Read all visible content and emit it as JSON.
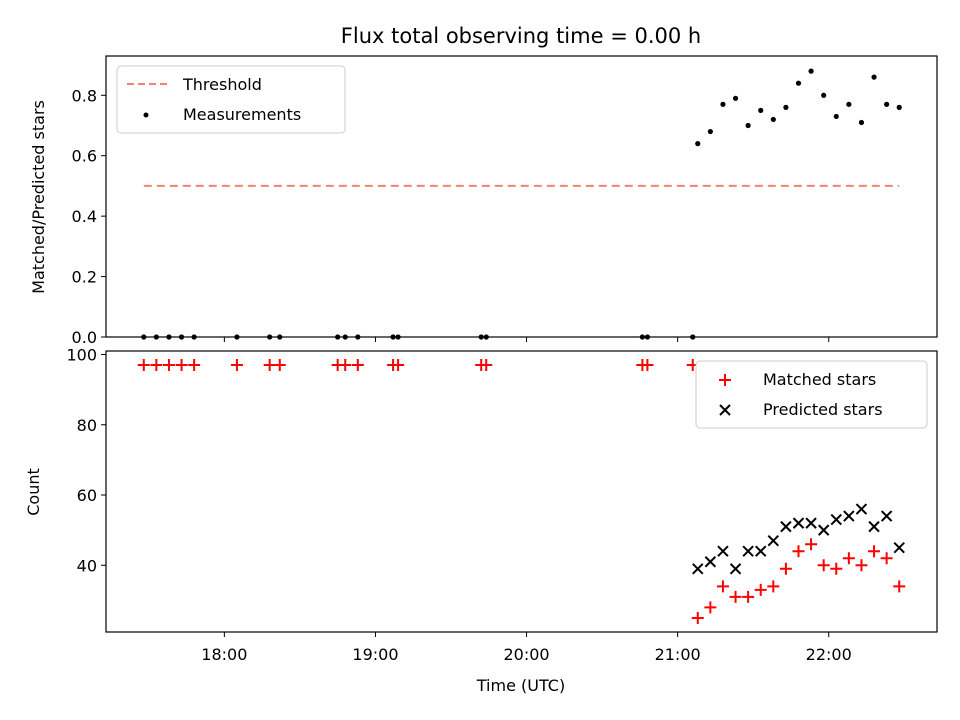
{
  "chart_data": [
    {
      "type": "scatter",
      "title": "Flux total observing time = 0.00 h",
      "ylabel": "Matched/Predicted stars",
      "xlabel": "",
      "ylim": [
        0.0,
        0.93
      ],
      "yticks": [
        0.0,
        0.2,
        0.4,
        0.6,
        0.8
      ],
      "ytick_labels": [
        "0.0",
        "0.2",
        "0.4",
        "0.6",
        "0.8"
      ],
      "legend": {
        "location": "upper-left",
        "entries": [
          "Threshold",
          "Measurements"
        ]
      },
      "threshold": {
        "name": "Threshold",
        "value": 0.5,
        "x_start": "17:28",
        "x_end": "22:28",
        "color": "#fa8072"
      },
      "series": [
        {
          "name": "Measurements",
          "marker": "dot",
          "color": "#000000",
          "x": [
            "17:28",
            "17:33",
            "17:38",
            "17:43",
            "17:48",
            "18:05",
            "18:18",
            "18:22",
            "18:45",
            "18:48",
            "18:53",
            "19:07",
            "19:09",
            "19:42",
            "19:44",
            "20:46",
            "20:48",
            "21:06",
            "21:08",
            "21:13",
            "21:18",
            "21:23",
            "21:28",
            "21:33",
            "21:38",
            "21:43",
            "21:48",
            "21:53",
            "21:58",
            "22:03",
            "22:08",
            "22:13",
            "22:18",
            "22:23",
            "22:28"
          ],
          "y": [
            0,
            0,
            0,
            0,
            0,
            0,
            0,
            0,
            0,
            0,
            0,
            0,
            0,
            0,
            0,
            0,
            0,
            0,
            0.64,
            0.68,
            0.77,
            0.79,
            0.7,
            0.75,
            0.72,
            0.76,
            0.84,
            0.88,
            0.8,
            0.73,
            0.77,
            0.71,
            0.86,
            0.77,
            0.76
          ]
        }
      ]
    },
    {
      "type": "scatter",
      "title": "",
      "ylabel": "Count",
      "xlabel": "Time (UTC)",
      "ylim": [
        21,
        101
      ],
      "yticks": [
        40,
        60,
        80,
        100
      ],
      "ytick_labels": [
        "40",
        "60",
        "80",
        "100"
      ],
      "xlim": [
        "17:13",
        "22:43"
      ],
      "xticks": [
        "18:00",
        "19:00",
        "20:00",
        "21:00",
        "22:00"
      ],
      "xtick_labels": [
        "18:00",
        "19:00",
        "20:00",
        "21:00",
        "22:00"
      ],
      "legend": {
        "location": "upper-right",
        "entries": [
          "Matched stars",
          "Predicted stars"
        ]
      },
      "series": [
        {
          "name": "Matched stars",
          "marker": "plus",
          "color": "#ff0000",
          "x": [
            "17:28",
            "17:33",
            "17:38",
            "17:43",
            "17:48",
            "18:05",
            "18:18",
            "18:22",
            "18:45",
            "18:48",
            "18:53",
            "19:07",
            "19:09",
            "19:42",
            "19:44",
            "20:46",
            "20:48",
            "21:06",
            "21:08",
            "21:13",
            "21:18",
            "21:23",
            "21:28",
            "21:33",
            "21:38",
            "21:43",
            "21:48",
            "21:53",
            "21:58",
            "22:03",
            "22:08",
            "22:13",
            "22:18",
            "22:23",
            "22:28"
          ],
          "y": [
            97,
            97,
            97,
            97,
            97,
            97,
            97,
            97,
            97,
            97,
            97,
            97,
            97,
            97,
            97,
            97,
            97,
            97,
            25,
            28,
            34,
            31,
            31,
            33,
            34,
            39,
            44,
            46,
            40,
            39,
            42,
            40,
            44,
            42,
            34
          ]
        },
        {
          "name": "Predicted stars",
          "marker": "x",
          "color": "#000000",
          "x": [
            "21:08",
            "21:13",
            "21:18",
            "21:23",
            "21:28",
            "21:33",
            "21:38",
            "21:43",
            "21:48",
            "21:53",
            "21:58",
            "22:03",
            "22:08",
            "22:13",
            "22:18",
            "22:23",
            "22:28"
          ],
          "y": [
            39,
            41,
            44,
            39,
            44,
            44,
            47,
            51,
            52,
            52,
            50,
            53,
            54,
            56,
            51,
            54,
            45
          ]
        }
      ]
    }
  ]
}
